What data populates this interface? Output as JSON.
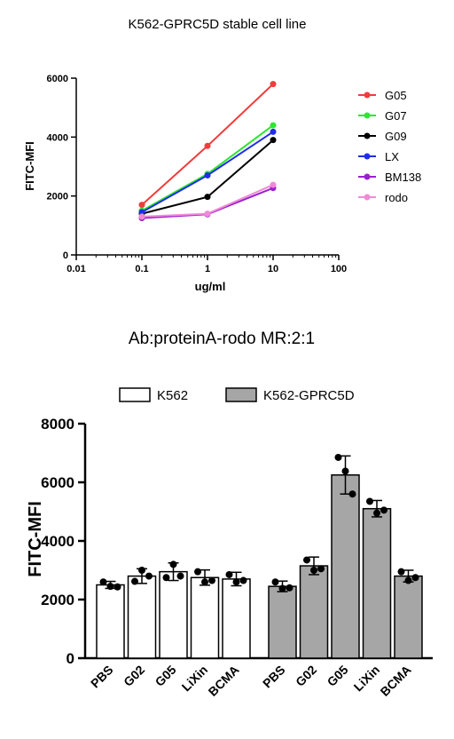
{
  "chart_data": [
    {
      "type": "line",
      "title": "K562-GPRC5D stable cell line",
      "xlabel": "ug/ml",
      "ylabel": "FITC-MFI",
      "xscale": "log",
      "xlim": [
        0.01,
        100
      ],
      "ylim": [
        0,
        6000
      ],
      "x_ticks": [
        "0.01",
        "0.1",
        "1",
        "10",
        "100"
      ],
      "y_ticks": [
        "0",
        "2000",
        "4000",
        "6000"
      ],
      "x": [
        0.1,
        1,
        10
      ],
      "legend_position": "right",
      "grid": false,
      "series": [
        {
          "name": "G05",
          "color": "#f03c3c",
          "values": [
            1700,
            3700,
            5800
          ]
        },
        {
          "name": "G07",
          "color": "#2ee62e",
          "values": [
            1500,
            2750,
            4400
          ]
        },
        {
          "name": "G09",
          "color": "#000000",
          "values": [
            1400,
            1970,
            3900
          ]
        },
        {
          "name": "LX",
          "color": "#1f2ee6",
          "values": [
            1450,
            2700,
            4180
          ]
        },
        {
          "name": "BM138",
          "color": "#9a1fd1",
          "values": [
            1250,
            1380,
            2270
          ]
        },
        {
          "name": "rodo",
          "color": "#f08ad6",
          "values": [
            1300,
            1400,
            2380
          ]
        }
      ]
    },
    {
      "type": "bar",
      "title": "Ab:proteinA-rodo MR:2:1",
      "ylabel": "FITC-MFI",
      "xlabel": "",
      "ylim": [
        0,
        8000
      ],
      "y_ticks": [
        "0",
        "2000",
        "4000",
        "6000",
        "8000"
      ],
      "legend_position": "top",
      "grid": false,
      "categories": [
        "PBS",
        "G02",
        "G05",
        "LiXin",
        "BCMA"
      ],
      "series": [
        {
          "name": "K562",
          "color": "#ffffff",
          "values": [
            2500,
            2800,
            2950,
            2750,
            2700
          ],
          "errors": [
            120,
            250,
            300,
            260,
            230
          ],
          "points": [
            [
              2600,
              2450,
              2430
            ],
            [
              2620,
              3000,
              2800
            ],
            [
              2750,
              3200,
              2800
            ],
            [
              2950,
              2600,
              2650
            ],
            [
              2850,
              2600,
              2650
            ]
          ]
        },
        {
          "name": "K562-GPRC5D",
          "color": "#a6a6a6",
          "values": [
            2450,
            3150,
            6250,
            5100,
            2800
          ],
          "errors": [
            180,
            300,
            650,
            280,
            200
          ],
          "points": [
            [
              2600,
              2380,
              2400
            ],
            [
              3350,
              3000,
              3050
            ],
            [
              6850,
              6380,
              5600
            ],
            [
              5350,
              4950,
              5050
            ],
            [
              2950,
              2650,
              2750
            ]
          ]
        }
      ]
    }
  ]
}
